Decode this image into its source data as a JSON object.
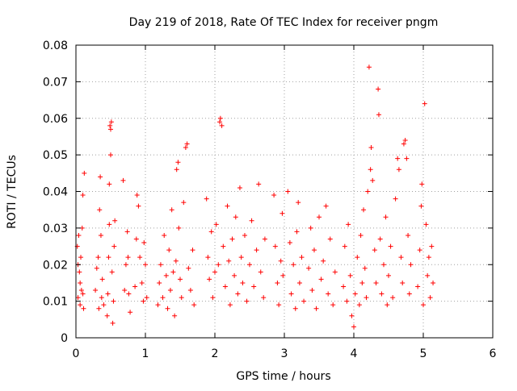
{
  "colors": {
    "marker": "#ff0000",
    "grid": "#a0a0a0",
    "axis": "#000000",
    "background": "#ffffff"
  },
  "chart_data": {
    "type": "scatter",
    "title": "Day 219 of 2018, Rate Of TEC Index for receiver pngm",
    "xlabel": "GPS time / hours",
    "ylabel": "ROTI / TECUs",
    "xlim": [
      0,
      6
    ],
    "ylim": [
      0,
      0.08
    ],
    "xticks": [
      0,
      1,
      2,
      3,
      4,
      5,
      6
    ],
    "xtick_labels": [
      "0",
      "1",
      "2",
      "3",
      "4",
      "5",
      "6"
    ],
    "yticks": [
      0,
      0.01,
      0.02,
      0.03,
      0.04,
      0.05,
      0.06,
      0.07,
      0.08
    ],
    "ytick_labels": [
      "0",
      "0.01",
      "0.02",
      "0.03",
      "0.04",
      "0.05",
      "0.06",
      "0.07",
      "0.08"
    ],
    "grid": true,
    "marker": "plus",
    "series": [
      {
        "name": "ROTI",
        "points": [
          [
            0.02,
            0.025
          ],
          [
            0.03,
            0.011
          ],
          [
            0.04,
            0.028
          ],
          [
            0.05,
            0.018
          ],
          [
            0.06,
            0.009
          ],
          [
            0.07,
            0.022
          ],
          [
            0.08,
            0.013
          ],
          [
            0.09,
            0.03
          ],
          [
            0.1,
            0.012
          ],
          [
            0.11,
            0.008
          ],
          [
            0.12,
            0.045
          ],
          [
            0.1,
            0.039
          ],
          [
            0.03,
            0.02
          ],
          [
            0.06,
            0.015
          ],
          [
            0.28,
            0.013
          ],
          [
            0.3,
            0.019
          ],
          [
            0.32,
            0.022
          ],
          [
            0.34,
            0.035
          ],
          [
            0.35,
            0.044
          ],
          [
            0.36,
            0.028
          ],
          [
            0.37,
            0.011
          ],
          [
            0.38,
            0.016
          ],
          [
            0.4,
            0.009
          ],
          [
            0.33,
            0.008
          ],
          [
            0.45,
            0.006
          ],
          [
            0.46,
            0.012
          ],
          [
            0.47,
            0.022
          ],
          [
            0.48,
            0.031
          ],
          [
            0.48,
            0.042
          ],
          [
            0.49,
            0.058
          ],
          [
            0.5,
            0.057
          ],
          [
            0.51,
            0.059
          ],
          [
            0.5,
            0.05
          ],
          [
            0.52,
            0.018
          ],
          [
            0.53,
            0.004
          ],
          [
            0.54,
            0.01
          ],
          [
            0.55,
            0.025
          ],
          [
            0.56,
            0.032
          ],
          [
            0.68,
            0.043
          ],
          [
            0.7,
            0.013
          ],
          [
            0.72,
            0.02
          ],
          [
            0.74,
            0.029
          ],
          [
            0.76,
            0.012
          ],
          [
            0.78,
            0.007
          ],
          [
            0.75,
            0.022
          ],
          [
            0.85,
            0.014
          ],
          [
            0.87,
            0.027
          ],
          [
            0.88,
            0.039
          ],
          [
            0.9,
            0.036
          ],
          [
            0.92,
            0.022
          ],
          [
            0.95,
            0.015
          ],
          [
            0.97,
            0.01
          ],
          [
            1,
            0.02
          ],
          [
            1.02,
            0.011
          ],
          [
            0.98,
            0.026
          ],
          [
            1.18,
            0.009
          ],
          [
            1.2,
            0.015
          ],
          [
            1.22,
            0.02
          ],
          [
            1.25,
            0.011
          ],
          [
            1.27,
            0.028
          ],
          [
            1.3,
            0.017
          ],
          [
            1.32,
            0.008
          ],
          [
            1.34,
            0.024
          ],
          [
            1.36,
            0.013
          ],
          [
            1.38,
            0.035
          ],
          [
            1.4,
            0.018
          ],
          [
            1.42,
            0.006
          ],
          [
            1.44,
            0.021
          ],
          [
            1.45,
            0.046
          ],
          [
            1.47,
            0.048
          ],
          [
            1.48,
            0.03
          ],
          [
            1.5,
            0.016
          ],
          [
            1.52,
            0.011
          ],
          [
            1.55,
            0.037
          ],
          [
            1.58,
            0.052
          ],
          [
            1.6,
            0.053
          ],
          [
            1.62,
            0.019
          ],
          [
            1.65,
            0.013
          ],
          [
            1.68,
            0.024
          ],
          [
            1.7,
            0.009
          ],
          [
            1.88,
            0.038
          ],
          [
            1.9,
            0.022
          ],
          [
            1.92,
            0.016
          ],
          [
            1.95,
            0.029
          ],
          [
            1.97,
            0.011
          ],
          [
            2,
            0.018
          ],
          [
            2.02,
            0.031
          ],
          [
            2.05,
            0.02
          ],
          [
            2.07,
            0.059
          ],
          [
            2.08,
            0.06
          ],
          [
            2.1,
            0.058
          ],
          [
            2.12,
            0.025
          ],
          [
            2.15,
            0.014
          ],
          [
            2.18,
            0.036
          ],
          [
            2.2,
            0.021
          ],
          [
            2.22,
            0.009
          ],
          [
            2.25,
            0.027
          ],
          [
            2.28,
            0.017
          ],
          [
            2.3,
            0.033
          ],
          [
            2.33,
            0.012
          ],
          [
            2.36,
            0.041
          ],
          [
            2.38,
            0.022
          ],
          [
            2.4,
            0.015
          ],
          [
            2.43,
            0.028
          ],
          [
            2.46,
            0.01
          ],
          [
            2.5,
            0.02
          ],
          [
            2.53,
            0.032
          ],
          [
            2.56,
            0.014
          ],
          [
            2.6,
            0.024
          ],
          [
            2.63,
            0.042
          ],
          [
            2.66,
            0.018
          ],
          [
            2.7,
            0.011
          ],
          [
            2.72,
            0.027
          ],
          [
            2.85,
            0.039
          ],
          [
            2.87,
            0.025
          ],
          [
            2.9,
            0.015
          ],
          [
            2.92,
            0.009
          ],
          [
            2.95,
            0.021
          ],
          [
            2.97,
            0.034
          ],
          [
            2.98,
            0.017
          ],
          [
            3.05,
            0.04
          ],
          [
            3.08,
            0.026
          ],
          [
            3.1,
            0.012
          ],
          [
            3.13,
            0.02
          ],
          [
            3.16,
            0.008
          ],
          [
            3.18,
            0.029
          ],
          [
            3.2,
            0.037
          ],
          [
            3.22,
            0.015
          ],
          [
            3.25,
            0.022
          ],
          [
            3.28,
            0.01
          ],
          [
            3.35,
            0.019
          ],
          [
            3.38,
            0.03
          ],
          [
            3.4,
            0.013
          ],
          [
            3.43,
            0.024
          ],
          [
            3.46,
            0.008
          ],
          [
            3.5,
            0.033
          ],
          [
            3.53,
            0.016
          ],
          [
            3.56,
            0.021
          ],
          [
            3.6,
            0.036
          ],
          [
            3.63,
            0.012
          ],
          [
            3.66,
            0.027
          ],
          [
            3.7,
            0.009
          ],
          [
            3.73,
            0.018
          ],
          [
            3.85,
            0.014
          ],
          [
            3.87,
            0.025
          ],
          [
            3.9,
            0.01
          ],
          [
            3.92,
            0.031
          ],
          [
            3.95,
            0.017
          ],
          [
            3.97,
            0.006
          ],
          [
            4,
            0.003
          ],
          [
            4.02,
            0.012
          ],
          [
            4.05,
            0.022
          ],
          [
            4.08,
            0.009
          ],
          [
            4.1,
            0.028
          ],
          [
            4.12,
            0.015
          ],
          [
            4.14,
            0.035
          ],
          [
            4.16,
            0.019
          ],
          [
            4.18,
            0.011
          ],
          [
            4.2,
            0.04
          ],
          [
            4.22,
            0.074
          ],
          [
            4.24,
            0.046
          ],
          [
            4.25,
            0.052
          ],
          [
            4.27,
            0.043
          ],
          [
            4.3,
            0.024
          ],
          [
            4.32,
            0.015
          ],
          [
            4.35,
            0.068
          ],
          [
            4.36,
            0.061
          ],
          [
            4.38,
            0.027
          ],
          [
            4.4,
            0.012
          ],
          [
            4.43,
            0.02
          ],
          [
            4.46,
            0.033
          ],
          [
            4.48,
            0.009
          ],
          [
            4.5,
            0.017
          ],
          [
            4.53,
            0.025
          ],
          [
            4.56,
            0.011
          ],
          [
            4.6,
            0.038
          ],
          [
            4.63,
            0.049
          ],
          [
            4.65,
            0.046
          ],
          [
            4.68,
            0.022
          ],
          [
            4.7,
            0.015
          ],
          [
            4.72,
            0.053
          ],
          [
            4.74,
            0.054
          ],
          [
            4.76,
            0.049
          ],
          [
            4.78,
            0.028
          ],
          [
            4.8,
            0.012
          ],
          [
            4.82,
            0.02
          ],
          [
            4.92,
            0.014
          ],
          [
            4.95,
            0.024
          ],
          [
            4.97,
            0.036
          ],
          [
            4.98,
            0.042
          ],
          [
            5,
            0.009
          ],
          [
            5.02,
            0.064
          ],
          [
            5.04,
            0.031
          ],
          [
            5.06,
            0.017
          ],
          [
            5.08,
            0.022
          ],
          [
            5.1,
            0.011
          ],
          [
            5.12,
            0.025
          ],
          [
            5.14,
            0.015
          ]
        ]
      }
    ]
  }
}
